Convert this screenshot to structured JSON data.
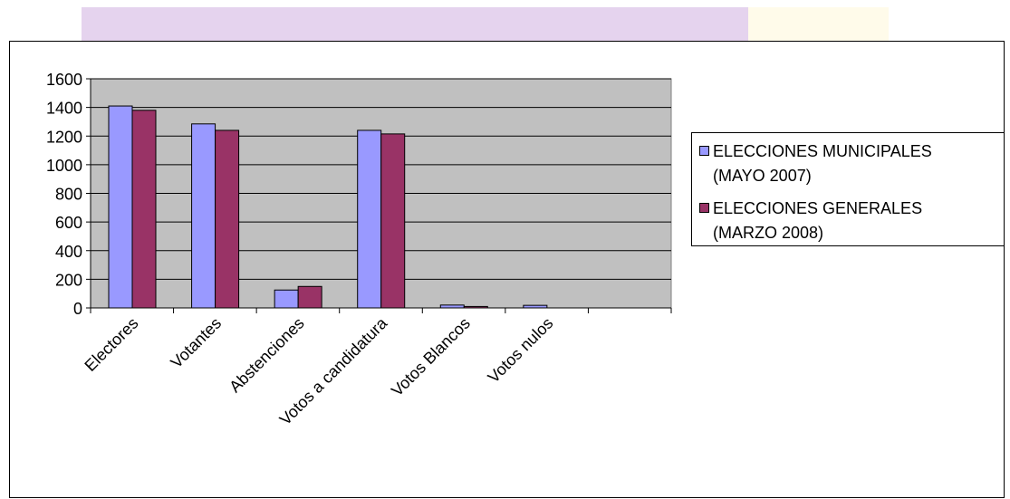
{
  "colors": {
    "plot_background": "#c0c0c0",
    "band_purple": "#e5d3ee",
    "band_cream": "#fffbea"
  },
  "chart_data": {
    "type": "bar",
    "title": "",
    "xlabel": "",
    "ylabel": "",
    "ylim": [
      0,
      1600
    ],
    "yticks": [
      "0",
      "200",
      "400",
      "600",
      "800",
      "1000",
      "1200",
      "1400",
      "1600"
    ],
    "categories": [
      "Electores",
      "Votantes",
      "Abstenciones",
      "Votos a candidatura",
      "Votos Blancos",
      "Votos nulos",
      ""
    ],
    "series": [
      {
        "name_lines": [
          "ELECCIONES MUNICIPALES",
          "(MAYO 2007)"
        ],
        "color": "#9999ff",
        "values": [
          1410,
          1285,
          125,
          1240,
          20,
          18,
          null
        ]
      },
      {
        "name_lines": [
          "ELECCIONES GENERALES",
          "(MARZO 2008)"
        ],
        "color": "#993366",
        "values": [
          1380,
          1240,
          150,
          1215,
          10,
          null,
          null
        ]
      }
    ],
    "grid": "horizontal",
    "legend_position": "right"
  }
}
